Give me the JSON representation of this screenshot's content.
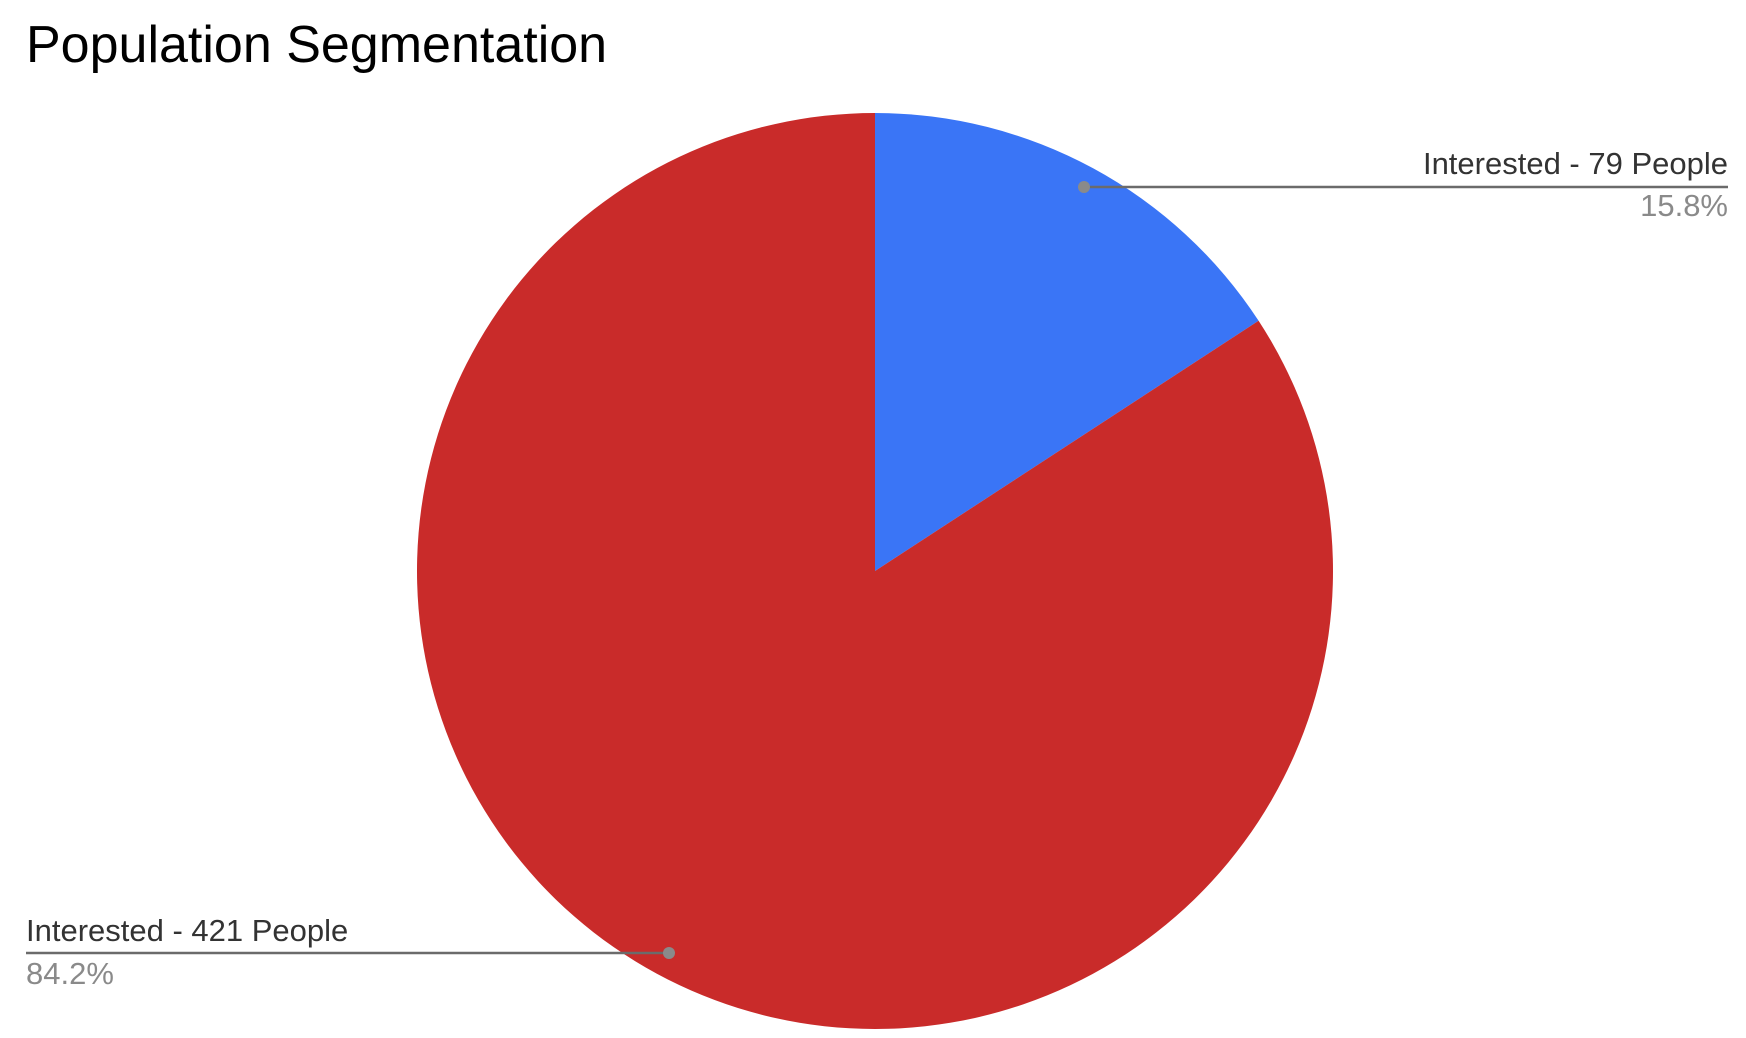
{
  "chart_data": {
    "type": "pie",
    "title": "Population Segmentation",
    "slices": [
      {
        "label": "Interested - 79 People",
        "value": 79,
        "percent_label": "15.8%",
        "color": "#3a75f6"
      },
      {
        "label": "Interested - 421 People",
        "value": 421,
        "percent_label": "84.2%",
        "color": "#c92b2a"
      }
    ],
    "start_angle_deg": 0,
    "direction": "clockwise",
    "legend": "none"
  }
}
